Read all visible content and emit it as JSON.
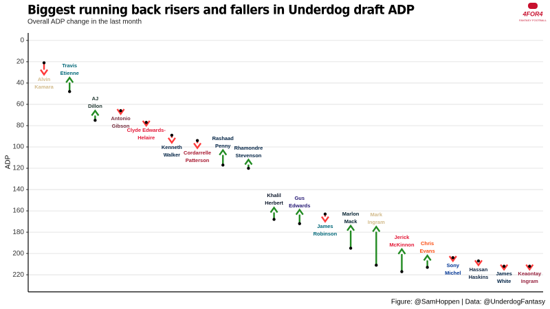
{
  "chart_data": {
    "type": "arrow",
    "title": "Biggest running back risers and fallers in Underdog draft ADP",
    "subtitle": "Overall ADP change in the last month",
    "y_label": "ADP",
    "caption": "Figure: @SamHoppen | Data: @UnderdogFantasy",
    "logo": "4FOR4",
    "logo_sub": "FANTASY FOOTBALL",
    "categories": [
      "Alvin Kamara",
      "Travis Etienne",
      "AJ Dillon",
      "Antonio Gibson",
      "Clyde Edwards-Helaire",
      "Kenneth Walker",
      "Cordarrelle Patterson",
      "Rashaad Penny",
      "Rhamondre Stevenson",
      "Khalil Herbert",
      "Gus Edwards",
      "James Robinson",
      "Marlon Mack",
      "Mark Ingram",
      "Jerick McKinnon",
      "Chris Evans",
      "Sony Michel",
      "Hassan Haskins",
      "James White",
      "Keaontay Ingram"
    ],
    "start_values": [
      21,
      48,
      75,
      66,
      77,
      89,
      94,
      117,
      120,
      168,
      172,
      163,
      195,
      211,
      217,
      213,
      204,
      207,
      212,
      212
    ],
    "end_values": [
      32,
      35,
      66,
      69,
      80,
      96,
      101,
      103,
      112,
      157,
      159,
      170,
      174,
      175,
      196,
      202,
      207,
      211,
      215,
      215
    ],
    "label_colors": [
      "#d3bc8d",
      "#006778",
      "#203731",
      "#773141",
      "#e31837",
      "#002244",
      "#a71930",
      "#002244",
      "#002244",
      "#0b162a",
      "#241773",
      "#006778",
      "#03202f",
      "#d3bc8d",
      "#e31837",
      "#fb4f14",
      "#003594",
      "#0c2340",
      "#002244",
      "#97233f"
    ],
    "rise_color": "#228b22",
    "fall_color": "#ff3b3b",
    "ylim": [
      -7,
      236
    ],
    "y_inverted": true,
    "yticks": [
      0,
      20,
      40,
      60,
      80,
      100,
      120,
      140,
      160,
      180,
      200,
      220
    ],
    "grid": true
  }
}
